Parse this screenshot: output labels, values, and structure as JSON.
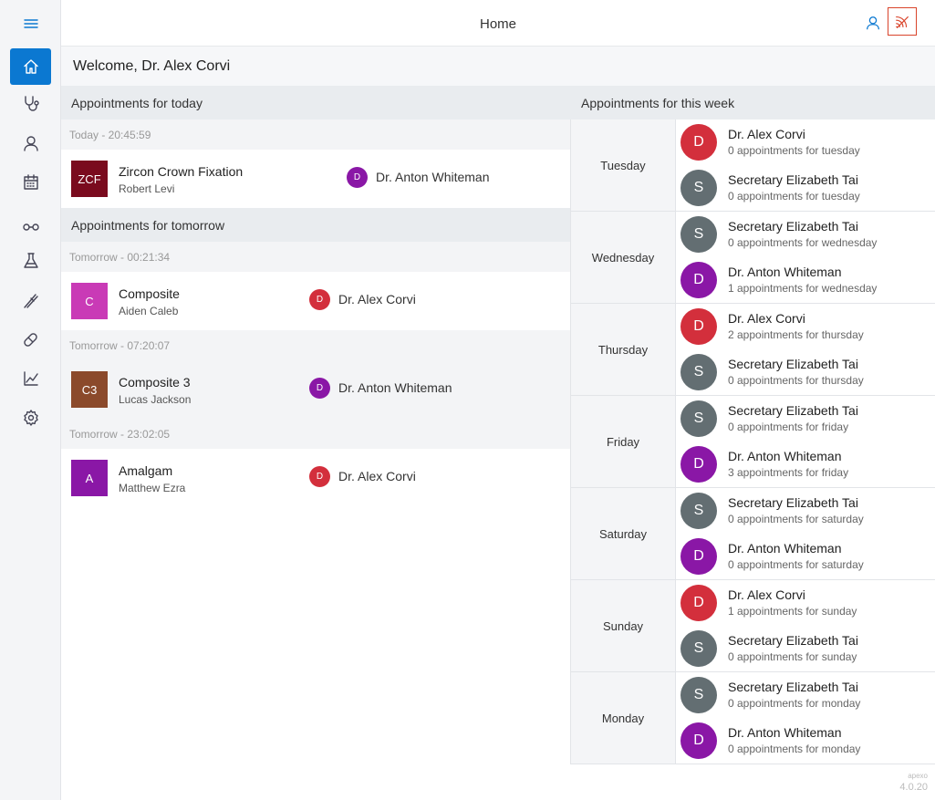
{
  "header": {
    "title": "Home"
  },
  "welcome": "Welcome, Dr. Alex Corvi",
  "colors": {
    "accent": "#0b78d1",
    "alert": "#d9442b",
    "red": "#d32f3c",
    "purple": "#8a17a6",
    "grey": "#636e72"
  },
  "sidebar": [
    {
      "name": "home-icon"
    },
    {
      "name": "stethoscope-icon"
    },
    {
      "name": "user-icon"
    },
    {
      "name": "calendar-icon"
    },
    {
      "name": "glasses-icon"
    },
    {
      "name": "flask-icon"
    },
    {
      "name": "tooth-tool-icon"
    },
    {
      "name": "pill-icon"
    },
    {
      "name": "chart-icon"
    },
    {
      "name": "gear-icon"
    }
  ],
  "today": {
    "heading": "Appointments for today",
    "slots": [
      {
        "time": "Today - 20:45:59",
        "title": "Zircon Crown Fixation",
        "patient": "Robert Levi",
        "abbr": "ZCF",
        "color": "#7a0b1e",
        "doctor": "Dr. Anton Whiteman",
        "doctor_initial": "D",
        "doctor_color": "#8a17a6"
      }
    ]
  },
  "tomorrow": {
    "heading": "Appointments for tomorrow",
    "slots": [
      {
        "time": "Tomorrow - 00:21:34",
        "title": "Composite",
        "patient": "Aiden Caleb",
        "abbr": "C",
        "color": "#c93ab6",
        "doctor": "Dr. Alex Corvi",
        "doctor_initial": "D",
        "doctor_color": "#d32f3c"
      },
      {
        "time": "Tomorrow - 07:20:07",
        "title": "Composite 3",
        "patient": "Lucas Jackson",
        "abbr": "C3",
        "color": "#8b4a2b",
        "doctor": "Dr. Anton Whiteman",
        "doctor_initial": "D",
        "doctor_color": "#8a17a6"
      },
      {
        "time": "Tomorrow - 23:02:05",
        "title": "Amalgam",
        "patient": "Matthew Ezra",
        "abbr": "A",
        "color": "#8a17a6",
        "doctor": "Dr. Alex Corvi",
        "doctor_initial": "D",
        "doctor_color": "#d32f3c"
      }
    ]
  },
  "week": {
    "heading": "Appointments for this week",
    "days": [
      {
        "day": "Tuesday",
        "entries": [
          {
            "initial": "D",
            "color": "#d32f3c",
            "name": "Dr. Alex Corvi",
            "count": "0 appointments for tuesday"
          },
          {
            "initial": "S",
            "color": "#636e72",
            "name": "Secretary Elizabeth Tai",
            "count": "0 appointments for tuesday"
          }
        ]
      },
      {
        "day": "Wednesday",
        "entries": [
          {
            "initial": "S",
            "color": "#636e72",
            "name": "Secretary Elizabeth Tai",
            "count": "0 appointments for wednesday"
          },
          {
            "initial": "D",
            "color": "#8a17a6",
            "name": "Dr. Anton Whiteman",
            "count": "1 appointments for wednesday"
          }
        ]
      },
      {
        "day": "Thursday",
        "entries": [
          {
            "initial": "D",
            "color": "#d32f3c",
            "name": "Dr. Alex Corvi",
            "count": "2 appointments for thursday"
          },
          {
            "initial": "S",
            "color": "#636e72",
            "name": "Secretary Elizabeth Tai",
            "count": "0 appointments for thursday"
          }
        ]
      },
      {
        "day": "Friday",
        "entries": [
          {
            "initial": "S",
            "color": "#636e72",
            "name": "Secretary Elizabeth Tai",
            "count": "0 appointments for friday"
          },
          {
            "initial": "D",
            "color": "#8a17a6",
            "name": "Dr. Anton Whiteman",
            "count": "3 appointments for friday"
          }
        ]
      },
      {
        "day": "Saturday",
        "entries": [
          {
            "initial": "S",
            "color": "#636e72",
            "name": "Secretary Elizabeth Tai",
            "count": "0 appointments for saturday"
          },
          {
            "initial": "D",
            "color": "#8a17a6",
            "name": "Dr. Anton Whiteman",
            "count": "0 appointments for saturday"
          }
        ]
      },
      {
        "day": "Sunday",
        "entries": [
          {
            "initial": "D",
            "color": "#d32f3c",
            "name": "Dr. Alex Corvi",
            "count": "1 appointments for sunday"
          },
          {
            "initial": "S",
            "color": "#636e72",
            "name": "Secretary Elizabeth Tai",
            "count": "0 appointments for sunday"
          }
        ]
      },
      {
        "day": "Monday",
        "entries": [
          {
            "initial": "S",
            "color": "#636e72",
            "name": "Secretary Elizabeth Tai",
            "count": "0 appointments for monday"
          },
          {
            "initial": "D",
            "color": "#8a17a6",
            "name": "Dr. Anton Whiteman",
            "count": "0 appointments for monday"
          }
        ]
      }
    ]
  },
  "footer": {
    "brand": "apexo",
    "version": "4.0.20"
  }
}
